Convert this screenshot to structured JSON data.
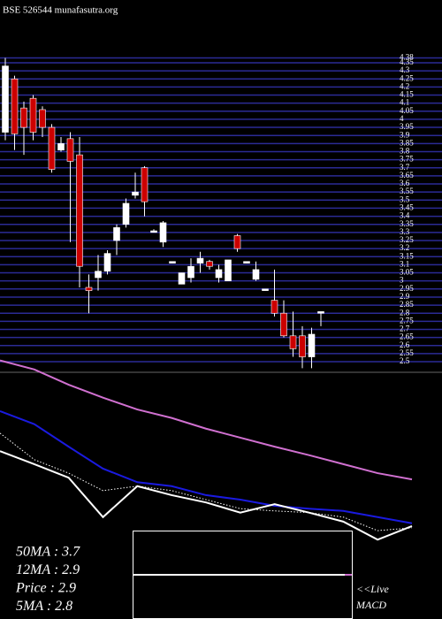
{
  "chart_data": [
    {
      "type": "candlestick",
      "title": "BSE 526544 munafasutra.org",
      "open": [
        3.92,
        4.25,
        4.07,
        4.13,
        4.06,
        3.95,
        3.81,
        3.88,
        3.78,
        2.96,
        3.02,
        3.06,
        3.25,
        3.35,
        3.53,
        3.7,
        3.3,
        3.24,
        3.11,
        2.98,
        3.02,
        3.11,
        3.12,
        3.02,
        3.0,
        3.28,
        3.11,
        3.01,
        2.94,
        2.88,
        2.8,
        2.66,
        2.66,
        2.53,
        2.8
      ],
      "high": [
        4.38,
        4.27,
        4.11,
        4.15,
        4.08,
        3.97,
        3.89,
        3.92,
        3.89,
        3.04,
        3.16,
        3.19,
        3.35,
        3.51,
        3.67,
        3.71,
        3.32,
        3.37,
        3.12,
        3.05,
        3.14,
        3.18,
        3.13,
        3.1,
        3.13,
        3.29,
        3.12,
        3.12,
        2.95,
        3.07,
        2.88,
        2.81,
        2.72,
        2.71,
        2.81
      ],
      "low": [
        3.87,
        3.81,
        3.78,
        3.87,
        3.89,
        3.67,
        3.8,
        3.24,
        2.96,
        2.8,
        2.94,
        3.04,
        3.16,
        3.33,
        3.51,
        3.4,
        3.3,
        3.21,
        3.11,
        2.98,
        2.99,
        3.05,
        3.07,
        2.99,
        3.0,
        3.18,
        3.11,
        3.0,
        2.94,
        2.78,
        2.65,
        2.53,
        2.46,
        2.46,
        2.72
      ],
      "close": [
        4.33,
        3.91,
        3.95,
        3.92,
        3.95,
        3.69,
        3.85,
        3.74,
        3.09,
        2.94,
        3.06,
        3.17,
        3.33,
        3.48,
        3.55,
        3.49,
        3.31,
        3.36,
        3.12,
        3.05,
        3.09,
        3.14,
        3.09,
        3.07,
        3.13,
        3.2,
        3.12,
        3.07,
        2.95,
        2.8,
        2.66,
        2.58,
        2.53,
        2.67,
        2.81
      ],
      "up_color": "#ffffff",
      "down_color": "#cc0000",
      "grid_color": "#2b2b95",
      "ylim": [
        2.44,
        4.41
      ],
      "yticks": [
        2.5,
        2.55,
        2.6,
        2.65,
        2.7,
        2.75,
        2.8,
        2.85,
        2.9,
        2.95,
        3,
        3.05,
        3.1,
        3.15,
        3.2,
        3.25,
        3.3,
        3.35,
        3.4,
        3.45,
        3.5,
        3.55,
        3.6,
        3.65,
        3.7,
        3.75,
        3.8,
        3.85,
        3.9,
        3.95,
        4,
        4.05,
        4.1,
        4.15,
        4.2,
        4.25,
        4.3,
        4.35,
        4.38
      ],
      "grid": true
    },
    {
      "type": "line",
      "x": [
        0,
        1,
        2,
        3,
        4,
        5,
        6,
        7,
        8,
        9,
        10,
        11,
        12
      ],
      "xlim": [
        0,
        12
      ],
      "ylim": [
        2.5,
        6.0
      ],
      "series": [
        {
          "color": "#d070d0",
          "style": "solid",
          "values": [
            5.88,
            5.72,
            5.45,
            5.22,
            5.01,
            4.86,
            4.67,
            4.51,
            4.35,
            4.2,
            4.04,
            3.88,
            3.77
          ]
        },
        {
          "color": "#1a1adf",
          "style": "solid",
          "values": [
            4.98,
            4.75,
            4.35,
            3.96,
            3.72,
            3.65,
            3.49,
            3.41,
            3.3,
            3.25,
            3.21,
            3.1,
            2.99
          ]
        },
        {
          "color": "#ffffff",
          "style": "dotted",
          "values": [
            4.59,
            4.12,
            3.88,
            3.57,
            3.65,
            3.57,
            3.41,
            3.25,
            3.21,
            3.18,
            3.1,
            2.86,
            2.91
          ]
        },
        {
          "color": "#ffffff",
          "style": "solid",
          "values": [
            4.27,
            4.04,
            3.8,
            3.1,
            3.65,
            3.49,
            3.36,
            3.18,
            3.33,
            3.18,
            3.02,
            2.7,
            2.94
          ]
        }
      ],
      "annotations": [
        "50MA : 3.7",
        "12MA : 2.9",
        "Price  : 2.9",
        "5MA : 2.8"
      ],
      "macd_labels": [
        "<<Live",
        "MACD"
      ]
    }
  ]
}
